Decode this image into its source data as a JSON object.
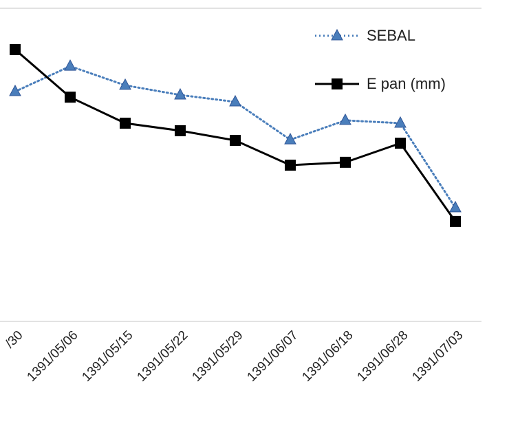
{
  "chart_data": {
    "type": "line",
    "categories": [
      "/30",
      "1391/05/06",
      "1391/05/15",
      "1391/05/22",
      "1391/05/29",
      "1391/06/07",
      "1391/06/18",
      "1391/06/28",
      "1391/07/03"
    ],
    "series": [
      {
        "name": "SEBAL",
        "color": "#4a7ebb",
        "marker": "triangle",
        "dash": "dotted",
        "values": [
          7.34,
          8.15,
          7.54,
          7.23,
          7.01,
          5.8,
          6.42,
          6.33,
          3.63
        ]
      },
      {
        "name": "E pan (mm)",
        "color": "#000000",
        "marker": "square",
        "dash": "solid",
        "values": [
          8.68,
          7.16,
          6.33,
          6.09,
          5.78,
          4.99,
          5.08,
          5.69,
          3.19
        ]
      }
    ],
    "ylim": [
      0,
      10
    ],
    "legend": "top-right"
  }
}
